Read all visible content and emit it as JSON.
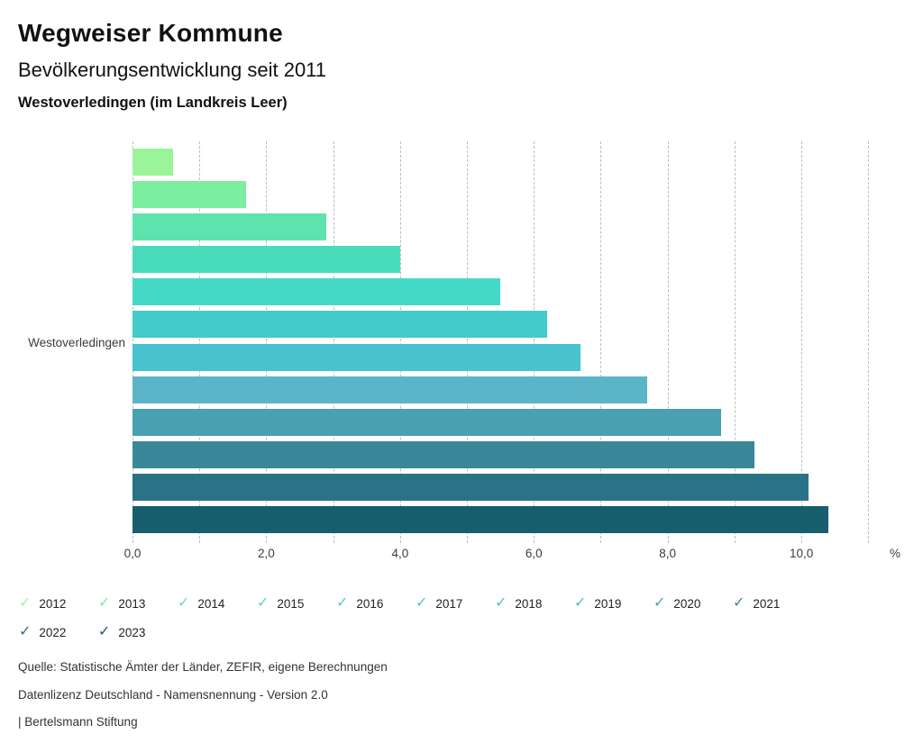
{
  "header": {
    "title": "Wegweiser Kommune",
    "subtitle": "Bevölkerungsentwicklung seit 2011",
    "location": "Westoverledingen (im Landkreis Leer)"
  },
  "chart_data": {
    "type": "bar",
    "orientation": "horizontal",
    "region_label": "Westoverledingen",
    "unit_label": "%",
    "categories": [
      "2012",
      "2013",
      "2014",
      "2015",
      "2016",
      "2017",
      "2018",
      "2019",
      "2020",
      "2021",
      "2022",
      "2023"
    ],
    "values": [
      0.6,
      1.7,
      2.9,
      4.0,
      5.5,
      6.2,
      6.7,
      7.7,
      8.8,
      9.3,
      10.1,
      10.4
    ],
    "colors": [
      "#9af59a",
      "#7deda0",
      "#5fe3ae",
      "#49dcbc",
      "#45d9c8",
      "#43cbcb",
      "#48c2cf",
      "#5bb5c8",
      "#49a0b1",
      "#3a8799",
      "#2a7386",
      "#175e6e"
    ],
    "xlim": [
      0,
      11.4
    ],
    "xticks": [
      {
        "value": 0,
        "label": "0,0"
      },
      {
        "value": 2,
        "label": "2,0"
      },
      {
        "value": 4,
        "label": "4,0"
      },
      {
        "value": 6,
        "label": "6,0"
      },
      {
        "value": 8,
        "label": "8,0"
      },
      {
        "value": 10,
        "label": "10,0"
      }
    ],
    "grid": {
      "interval": 1,
      "max": 11,
      "style": "dashed"
    },
    "legend_position": "bottom",
    "legend_glyph": "✓"
  },
  "footer": {
    "source": "Quelle: Statistische Ämter der Länder, ZEFIR, eigene Berechnungen",
    "license": "Datenlizenz Deutschland - Namensnennung - Version 2.0",
    "brand": "| Bertelsmann Stiftung"
  }
}
